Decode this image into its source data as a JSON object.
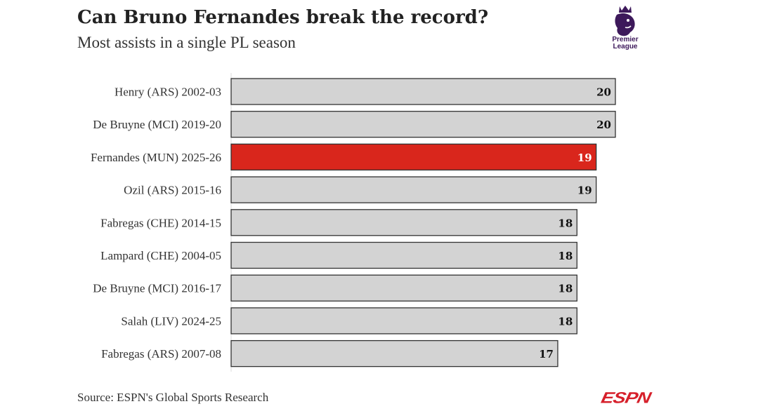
{
  "chart_data": {
    "type": "bar",
    "orientation": "horizontal",
    "title": "Can Bruno Fernandes break the record?",
    "subtitle": "Most assists in a single PL season",
    "source": "Source: ESPN's Global Sports Research",
    "categories": [
      "Henry (ARS) 2002-03",
      "De Bruyne (MCI) 2019-20",
      "Fernandes (MUN) 2025-26",
      "Ozil (ARS) 2015-16",
      "Fabregas (CHE) 2014-15",
      "Lampard (CHE) 2004-05",
      "De Bruyne (MCI) 2016-17",
      "Salah (LIV) 2024-25",
      "Fabregas (ARS) 2007-08"
    ],
    "values": [
      20,
      20,
      19,
      19,
      18,
      18,
      18,
      18,
      17
    ],
    "highlight_index": 2,
    "xlim": [
      0,
      20
    ],
    "grid": false,
    "legend": false
  },
  "colors": {
    "bar_default": "#d3d3d3",
    "bar_highlight": "#d9261c",
    "bar_stroke": "#333333",
    "label_default": "#111111",
    "label_highlight": "#ffffff",
    "axis_line": "#dddddd"
  },
  "logos": {
    "premier_league": {
      "icon": "premier-league-lion-icon",
      "line1": "Premier",
      "line2": "League"
    },
    "espn": "ESPN"
  }
}
